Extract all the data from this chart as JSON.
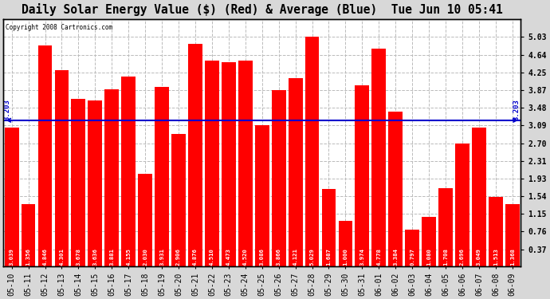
{
  "title": "Daily Solar Energy Value ($) (Red) & Average (Blue)  Tue Jun 10 05:41",
  "copyright": "Copyright 2008 Cartronics.com",
  "average": 3.203,
  "categories": [
    "05-10",
    "05-11",
    "05-12",
    "05-13",
    "05-14",
    "05-15",
    "05-16",
    "05-17",
    "05-18",
    "05-19",
    "05-20",
    "05-21",
    "05-22",
    "05-23",
    "05-24",
    "05-25",
    "05-26",
    "05-27",
    "05-28",
    "05-29",
    "05-30",
    "05-31",
    "06-01",
    "06-02",
    "06-03",
    "06-04",
    "06-05",
    "06-06",
    "06-07",
    "06-08",
    "06-09"
  ],
  "values": [
    3.039,
    1.356,
    4.846,
    4.301,
    3.678,
    3.636,
    3.881,
    4.155,
    2.03,
    3.931,
    2.906,
    4.876,
    4.51,
    4.473,
    4.52,
    3.086,
    3.866,
    4.121,
    5.029,
    1.687,
    1.0,
    3.974,
    4.778,
    3.384,
    0.797,
    1.08,
    1.708,
    2.696,
    3.049,
    1.513,
    1.368
  ],
  "bar_color": "#ff0000",
  "avg_line_color": "#0000cc",
  "outer_bg_color": "#d8d8d8",
  "plot_bg_color": "#ffffff",
  "grid_color": "#cccccc",
  "title_color": "#000000",
  "ylabel_values": [
    0.37,
    0.76,
    1.15,
    1.54,
    1.93,
    2.31,
    2.7,
    3.09,
    3.48,
    3.87,
    4.25,
    4.64,
    5.03
  ],
  "ymin": 0.0,
  "ymax": 5.42,
  "title_fontsize": 10.5,
  "tick_fontsize": 7,
  "bar_label_fontsize": 5.2,
  "avg_label_fontsize": 6.5,
  "avg_label": "3.203"
}
